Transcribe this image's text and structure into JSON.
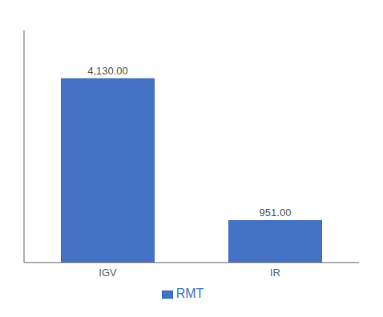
{
  "chart_data": {
    "type": "bar",
    "categories": [
      "IGV",
      "IR"
    ],
    "series": [
      {
        "name": "RMT",
        "color": "#4472C4",
        "values": [
          4130.0,
          951.0
        ],
        "value_labels": [
          "4,130.00",
          "951.00"
        ]
      }
    ],
    "ylim": [
      0,
      5200
    ],
    "data_labels": true,
    "legend": "bottom",
    "tick_labels": "x"
  }
}
